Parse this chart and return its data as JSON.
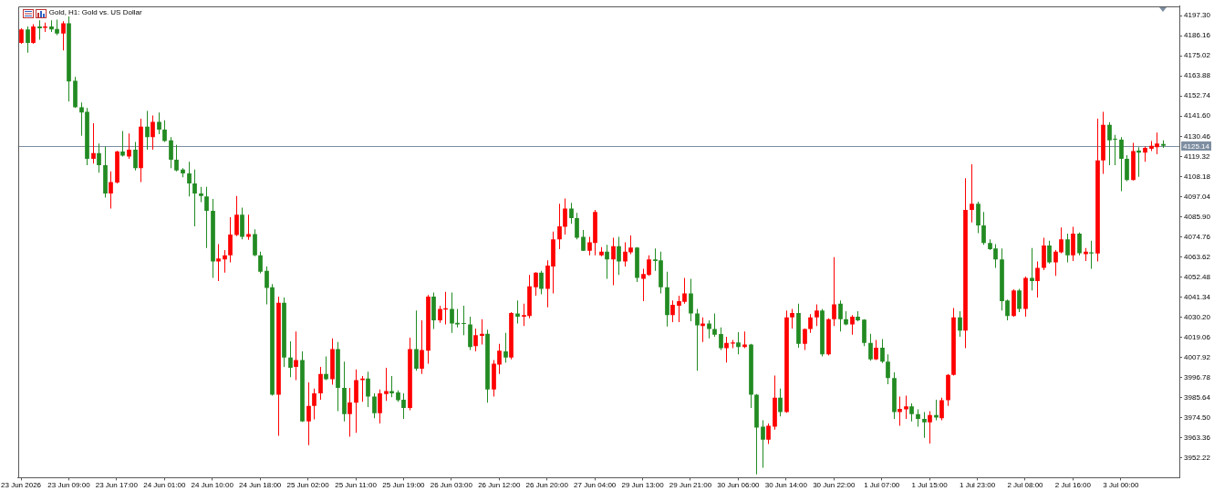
{
  "chart_data": {
    "type": "candlestick",
    "title": "Gold, H1: Gold vs. US Dollar",
    "categories": [
      "23 Jun 2026",
      null,
      null,
      null,
      null,
      null,
      null,
      null,
      "23 Jun 09:00",
      null,
      null,
      null,
      null,
      null,
      null,
      null,
      "23 Jun 17:00",
      null,
      null,
      null,
      null,
      null,
      null,
      null,
      "24 Jun 01:00",
      null,
      null,
      null,
      null,
      null,
      null,
      null,
      "24 Jun 10:00",
      null,
      null,
      null,
      null,
      null,
      null,
      null,
      "24 Jun 18:00",
      null,
      null,
      null,
      null,
      null,
      null,
      null,
      "25 Jun 02:00",
      null,
      null,
      null,
      null,
      null,
      null,
      null,
      "25 Jun 11:00",
      null,
      null,
      null,
      null,
      null,
      null,
      null,
      "25 Jun 19:00",
      null,
      null,
      null,
      null,
      null,
      null,
      null,
      "26 Jun 03:00",
      null,
      null,
      null,
      null,
      null,
      null,
      null,
      "26 Jun 12:00",
      null,
      null,
      null,
      null,
      null,
      null,
      null,
      "26 Jun 20:00",
      null,
      null,
      null,
      null,
      null,
      null,
      null,
      "27 Jun 04:00",
      null,
      null,
      null,
      null,
      null,
      null,
      null,
      "29 Jun 13:00",
      null,
      null,
      null,
      null,
      null,
      null,
      null,
      "29 Jun 21:00",
      null,
      null,
      null,
      null,
      null,
      null,
      null,
      "30 Jun 06:00",
      null,
      null,
      null,
      null,
      null,
      null,
      null,
      "30 Jun 14:00",
      null,
      null,
      null,
      null,
      null,
      null,
      null,
      "30 Jun 22:00",
      null,
      null,
      null,
      null,
      null,
      null,
      null,
      "1 Jul 07:00",
      null,
      null,
      null,
      null,
      null,
      null,
      null,
      "1 Jul 15:00",
      null,
      null,
      null,
      null,
      null,
      null,
      null,
      "1 Jul 23:00",
      null,
      null,
      null,
      null,
      null,
      null,
      null,
      "2 Jul 08:00",
      null,
      null,
      null,
      null,
      null,
      null,
      null,
      "2 Jul 16:00",
      null,
      null,
      null,
      null,
      null,
      null,
      null,
      "3 Jul 00:00",
      null,
      null,
      null,
      null,
      null,
      null,
      null
    ],
    "ohlc": [
      [
        4182.2,
        4190.3,
        4181.7,
        4189.6
      ],
      [
        4189.6,
        4191.3,
        4176.8,
        4182.2
      ],
      [
        4182.2,
        4192.5,
        4181.7,
        4191.3
      ],
      [
        4191.3,
        4194.7,
        4183.9,
        4190.3
      ],
      [
        4190.5,
        4193.4,
        4188.2,
        4191.3
      ],
      [
        4191.3,
        4194.7,
        4188.2,
        4189.6
      ],
      [
        4189.9,
        4195.1,
        4186.5,
        4187.4
      ],
      [
        4187.4,
        4194.2,
        4178.0,
        4193.0
      ],
      [
        4193.0,
        4196.8,
        4149.7,
        4160.8
      ],
      [
        4161.2,
        4163.4,
        4146.2,
        4146.6
      ],
      [
        4146.6,
        4149.2,
        4130.8,
        4143.7
      ],
      [
        4144.0,
        4146.2,
        4114.5,
        4118.0
      ],
      [
        4118.0,
        4137.7,
        4115.4,
        4121.1
      ],
      [
        4121.1,
        4126.5,
        4110.3,
        4114.5
      ],
      [
        4114.5,
        4124.8,
        4096.5,
        4098.8
      ],
      [
        4098.8,
        4111.1,
        4090.5,
        4105.1
      ],
      [
        4104.8,
        4122.4,
        4104.3,
        4122.1
      ],
      [
        4122.1,
        4133.4,
        4119.3,
        4119.7
      ],
      [
        4119.3,
        4132.0,
        4118.0,
        4123.1
      ],
      [
        4123.1,
        4127.4,
        4111.5,
        4112.8
      ],
      [
        4112.8,
        4140.2,
        4105.1,
        4135.8
      ],
      [
        4135.8,
        4144.5,
        4123.1,
        4130.0
      ],
      [
        4130.0,
        4142.0,
        4123.1,
        4138.5
      ],
      [
        4138.5,
        4143.7,
        4131.7,
        4134.2
      ],
      [
        4134.2,
        4139.4,
        4127.4,
        4127.9
      ],
      [
        4128.2,
        4130.0,
        4112.8,
        4117.5
      ],
      [
        4117.5,
        4125.7,
        4111.1,
        4111.6
      ],
      [
        4112.0,
        4112.8,
        4107.7,
        4109.9
      ],
      [
        4109.9,
        4116.3,
        4097.1,
        4104.3
      ],
      [
        4104.3,
        4112.0,
        4080.6,
        4098.8
      ],
      [
        4098.8,
        4102.5,
        4094.0,
        4097.4
      ],
      [
        4097.1,
        4102.5,
        4068.6,
        4089.2
      ],
      [
        4089.2,
        4095.7,
        4052.0,
        4061.1
      ],
      [
        4061.1,
        4070.8,
        4050.3,
        4062.8
      ],
      [
        4062.3,
        4067.4,
        4054.9,
        4064.5
      ],
      [
        4064.5,
        4085.7,
        4060.6,
        4076.0
      ],
      [
        4075.8,
        4097.4,
        4075.1,
        4087.1
      ],
      [
        4087.1,
        4090.9,
        4073.4,
        4074.8
      ],
      [
        4074.8,
        4087.1,
        4073.1,
        4076.3
      ],
      [
        4076.3,
        4078.9,
        4064.0,
        4064.5
      ],
      [
        4064.5,
        4066.6,
        4054.6,
        4055.4
      ],
      [
        4055.9,
        4058.3,
        4037.4,
        4046.5
      ],
      [
        4046.8,
        4048.6,
        3986.9,
        3987.4
      ],
      [
        3987.4,
        4041.7,
        3964.6,
        4038.3
      ],
      [
        4038.3,
        4041.2,
        4002.8,
        4007.9
      ],
      [
        4007.9,
        4016.9,
        3997.1,
        4002.3
      ],
      [
        4002.8,
        4022.3,
        3995.4,
        4006.6
      ],
      [
        4006.6,
        4011.4,
        3972.3,
        3972.6
      ],
      [
        3972.6,
        3994.2,
        3959.4,
        3981.2
      ],
      [
        3981.2,
        3990.8,
        3973.7,
        3988.1
      ],
      [
        3988.1,
        4002.8,
        3984.6,
        3998.9
      ],
      [
        3998.9,
        4008.6,
        3995.4,
        3995.9
      ],
      [
        3995.9,
        4018.6,
        3992.9,
        4012.6
      ],
      [
        4012.6,
        4016.5,
        3978.3,
        3991.1
      ],
      [
        3991.1,
        4005.7,
        3972.6,
        3976.6
      ],
      [
        3976.6,
        3991.1,
        3964.1,
        3983.1
      ],
      [
        3982.9,
        4001.4,
        3966.3,
        3995.4
      ],
      [
        3995.4,
        3997.7,
        3983.4,
        3996.3
      ],
      [
        3996.3,
        4000.1,
        3980.5,
        3986.3
      ],
      [
        3986.3,
        3988.1,
        3974.3,
        3977.1
      ],
      [
        3977.1,
        3990.3,
        3971.4,
        3988.1
      ],
      [
        3987.7,
        4002.3,
        3983.9,
        3989.4
      ],
      [
        3989.4,
        3997.7,
        3986.0,
        3988.1
      ],
      [
        3988.6,
        3989.8,
        3983.4,
        3984.3
      ],
      [
        3984.6,
        3988.1,
        3974.0,
        3980.0
      ],
      [
        3980.0,
        4018.9,
        3978.8,
        4012.6
      ],
      [
        4012.6,
        4034.0,
        4000.6,
        4001.8
      ],
      [
        4001.8,
        4028.5,
        3998.9,
        4012.1
      ],
      [
        4011.7,
        4042.6,
        4004.5,
        4041.7
      ],
      [
        4041.7,
        4043.9,
        4023.7,
        4028.5
      ],
      [
        4028.5,
        4036.6,
        4027.1,
        4034.8
      ],
      [
        4034.5,
        4044.3,
        4026.3,
        4035.2
      ],
      [
        4034.8,
        4043.9,
        4021.6,
        4026.8
      ],
      [
        4027.1,
        4034.8,
        4024.6,
        4026.3
      ],
      [
        4027.0,
        4036.6,
        4020.3,
        4026.5
      ],
      [
        4026.3,
        4030.6,
        4012.1,
        4013.8
      ],
      [
        4014.3,
        4024.0,
        4011.4,
        4020.3
      ],
      [
        4019.9,
        4029.2,
        4015.1,
        4021.1
      ],
      [
        4021.1,
        4023.4,
        3982.9,
        3990.3
      ],
      [
        3990.3,
        4006.6,
        3986.3,
        4004.5
      ],
      [
        4004.0,
        4015.5,
        3998.9,
        4011.7
      ],
      [
        4011.4,
        4021.6,
        4005.2,
        4007.9
      ],
      [
        4007.9,
        4033.1,
        4006.9,
        4032.6
      ],
      [
        4032.3,
        4039.5,
        4026.8,
        4030.6
      ],
      [
        4030.6,
        4037.8,
        4025.4,
        4031.4
      ],
      [
        4030.9,
        4053.7,
        4029.7,
        4047.4
      ],
      [
        4046.8,
        4055.2,
        4042.2,
        4054.9
      ],
      [
        4054.9,
        4055.9,
        4042.9,
        4046.0
      ],
      [
        4046.0,
        4061.8,
        4035.7,
        4058.8
      ],
      [
        4058.3,
        4077.7,
        4043.4,
        4073.4
      ],
      [
        4073.4,
        4093.1,
        4067.9,
        4080.6
      ],
      [
        4080.3,
        4096.0,
        4076.0,
        4090.5
      ],
      [
        4090.5,
        4093.6,
        4082.0,
        4085.1
      ],
      [
        4085.1,
        4088.0,
        4073.4,
        4074.3
      ],
      [
        4074.8,
        4078.6,
        4066.9,
        4067.1
      ],
      [
        4067.1,
        4074.8,
        4064.5,
        4071.7
      ],
      [
        4071.4,
        4089.7,
        4064.5,
        4088.5
      ],
      [
        4064.5,
        4069.1,
        4064.0,
        4066.6
      ],
      [
        4066.6,
        4070.3,
        4051.5,
        4062.3
      ],
      [
        4062.3,
        4074.3,
        4048.0,
        4069.6
      ],
      [
        4069.6,
        4074.8,
        4053.7,
        4061.1
      ],
      [
        4061.1,
        4071.7,
        4058.3,
        4066.6
      ],
      [
        4066.2,
        4075.5,
        4065.2,
        4068.8
      ],
      [
        4068.8,
        4069.1,
        4049.8,
        4052.0
      ],
      [
        4051.5,
        4057.1,
        4039.1,
        4054.2
      ],
      [
        4053.7,
        4064.5,
        4053.2,
        4062.3
      ],
      [
        4062.3,
        4068.3,
        4055.9,
        4061.4
      ],
      [
        4061.8,
        4066.6,
        4043.4,
        4046.8
      ],
      [
        4046.8,
        4055.4,
        4025.1,
        4031.4
      ],
      [
        4031.4,
        4039.5,
        4027.5,
        4037.1
      ],
      [
        4036.6,
        4042.2,
        4027.5,
        4039.1
      ],
      [
        4038.8,
        4052.0,
        4037.8,
        4043.4
      ],
      [
        4043.4,
        4051.5,
        4028.0,
        4032.3
      ],
      [
        4032.3,
        4034.8,
        4000.6,
        4025.8
      ],
      [
        4025.4,
        4030.2,
        4016.5,
        4026.8
      ],
      [
        4026.8,
        4028.5,
        4018.6,
        4023.7
      ],
      [
        4023.7,
        4032.3,
        4019.4,
        4020.6
      ],
      [
        4021.0,
        4024.6,
        4012.1,
        4013.1
      ],
      [
        4013.1,
        4019.4,
        4005.2,
        4016.0
      ],
      [
        4015.7,
        4017.7,
        4013.1,
        4016.3
      ],
      [
        4016.3,
        4022.0,
        4009.7,
        4013.8
      ],
      [
        4013.8,
        4022.3,
        4013.1,
        4015.1
      ],
      [
        4015.1,
        4015.5,
        3980.0,
        3987.4
      ],
      [
        3987.4,
        3987.7,
        3943.2,
        3969.2
      ],
      [
        3969.7,
        3973.2,
        3946.9,
        3962.4
      ],
      [
        3962.4,
        3971.4,
        3960.0,
        3970.2
      ],
      [
        3969.7,
        3998.0,
        3968.0,
        3985.7
      ],
      [
        3985.7,
        3990.8,
        3975.4,
        3977.8
      ],
      [
        3977.8,
        4034.0,
        3977.4,
        4030.2
      ],
      [
        4030.2,
        4034.8,
        4024.0,
        4032.6
      ],
      [
        4032.6,
        4037.8,
        4013.4,
        4015.5
      ],
      [
        4015.5,
        4024.0,
        4012.1,
        4023.7
      ],
      [
        4023.7,
        4031.9,
        4021.6,
        4030.2
      ],
      [
        4030.2,
        4037.4,
        4025.4,
        4034.0
      ],
      [
        4034.0,
        4034.8,
        4008.6,
        4009.7
      ],
      [
        4009.7,
        4029.7,
        4009.1,
        4029.2
      ],
      [
        4029.2,
        4063.5,
        4025.4,
        4037.4
      ],
      [
        4037.8,
        4039.5,
        4022.3,
        4029.2
      ],
      [
        4029.2,
        4033.6,
        4025.8,
        4026.3
      ],
      [
        4026.3,
        4031.4,
        4020.6,
        4030.6
      ],
      [
        4030.6,
        4033.6,
        4028.0,
        4028.5
      ],
      [
        4028.9,
        4029.2,
        4014.3,
        4016.0
      ],
      [
        4016.0,
        4021.1,
        4006.2,
        4006.9
      ],
      [
        4006.9,
        4017.7,
        4006.6,
        4013.4
      ],
      [
        4013.4,
        4018.2,
        4004.9,
        4005.7
      ],
      [
        4005.7,
        4009.7,
        3993.2,
        3996.6
      ],
      [
        3996.6,
        3999.7,
        3974.0,
        3977.8
      ],
      [
        3977.8,
        3986.3,
        3970.2,
        3979.5
      ],
      [
        3979.2,
        3986.9,
        3974.0,
        3980.9
      ],
      [
        3980.9,
        3982.6,
        3972.6,
        3976.6
      ],
      [
        3976.6,
        3979.2,
        3969.7,
        3974.0
      ],
      [
        3974.0,
        3977.8,
        3963.4,
        3972.0
      ],
      [
        3972.0,
        3978.3,
        3960.3,
        3976.1
      ],
      [
        3976.1,
        3984.6,
        3973.2,
        3974.7
      ],
      [
        3974.3,
        3985.7,
        3973.2,
        3984.3
      ],
      [
        3984.3,
        3998.9,
        3981.2,
        3998.3
      ],
      [
        3998.3,
        4035.4,
        3998.0,
        4030.2
      ],
      [
        4030.2,
        4033.6,
        4019.4,
        4022.8
      ],
      [
        4022.8,
        4107.3,
        4013.1,
        4089.7
      ],
      [
        4089.7,
        4114.9,
        4082.8,
        4093.1
      ],
      [
        4093.1,
        4094.3,
        4076.8,
        4081.1
      ],
      [
        4081.1,
        4088.5,
        4070.3,
        4071.4
      ],
      [
        4071.4,
        4073.4,
        4067.4,
        4067.9
      ],
      [
        4068.3,
        4070.8,
        4057.6,
        4062.3
      ],
      [
        4062.3,
        4068.3,
        4034.0,
        4039.1
      ],
      [
        4039.5,
        4040.0,
        4028.5,
        4030.9
      ],
      [
        4030.9,
        4045.7,
        4030.6,
        4045.1
      ],
      [
        4045.1,
        4046.0,
        4033.1,
        4034.8
      ],
      [
        4034.8,
        4052.8,
        4030.6,
        4052.0
      ],
      [
        4052.0,
        4068.6,
        4045.1,
        4050.3
      ],
      [
        4050.3,
        4061.1,
        4041.2,
        4057.6
      ],
      [
        4057.6,
        4074.3,
        4056.3,
        4070.0
      ],
      [
        4070.0,
        4072.6,
        4060.0,
        4060.6
      ],
      [
        4060.6,
        4067.4,
        4053.2,
        4066.6
      ],
      [
        4066.2,
        4079.9,
        4065.7,
        4073.4
      ],
      [
        4073.4,
        4076.5,
        4060.6,
        4064.5
      ],
      [
        4064.5,
        4080.3,
        4061.4,
        4076.5
      ],
      [
        4076.5,
        4077.2,
        4064.5,
        4065.7
      ],
      [
        4065.2,
        4068.6,
        4061.4,
        4066.6
      ],
      [
        4066.2,
        4072.6,
        4057.1,
        4065.5
      ],
      [
        4065.5,
        4140.2,
        4061.1,
        4117.1
      ],
      [
        4117.1,
        4144.0,
        4109.7,
        4136.8
      ],
      [
        4136.8,
        4138.2,
        4114.5,
        4128.2
      ],
      [
        4129.1,
        4131.3,
        4114.5,
        4128.6
      ],
      [
        4128.6,
        4130.0,
        4100.0,
        4118.0
      ],
      [
        4118.0,
        4120.0,
        4105.6,
        4106.3
      ],
      [
        4106.3,
        4126.9,
        4106.0,
        4122.3
      ],
      [
        4122.6,
        4124.5,
        4108.0,
        4121.4
      ],
      [
        4121.4,
        4124.8,
        4116.3,
        4124.0
      ],
      [
        4123.6,
        4127.9,
        4122.3,
        4125.2
      ],
      [
        4124.5,
        4132.5,
        4120.5,
        4126.5
      ],
      [
        4126.2,
        4128.2,
        4124.0,
        4125.14
      ]
    ],
    "colors": [
      "#ff0000",
      "#228b22",
      "#ff0000",
      "#228b22",
      "#ff0000",
      "#228b22",
      "#228b22",
      "#ff0000",
      "#228b22",
      "#228b22",
      "#228b22",
      "#228b22",
      "#ff0000",
      "#228b22",
      "#228b22",
      "#ff0000",
      "#ff0000",
      "#228b22",
      "#ff0000",
      "#228b22",
      "#ff0000",
      "#228b22",
      "#ff0000",
      "#228b22",
      "#228b22",
      "#228b22",
      "#228b22",
      "#228b22",
      "#228b22",
      "#228b22",
      "#228b22",
      "#228b22",
      "#228b22",
      "#ff0000",
      "#ff0000",
      "#ff0000",
      "#ff0000",
      "#228b22",
      "#ff0000",
      "#228b22",
      "#228b22",
      "#228b22",
      "#228b22",
      "#ff0000",
      "#228b22",
      "#228b22",
      "#ff0000",
      "#228b22",
      "#ff0000",
      "#ff0000",
      "#ff0000",
      "#228b22",
      "#ff0000",
      "#228b22",
      "#228b22",
      "#ff0000",
      "#ff0000",
      "#ff0000",
      "#228b22",
      "#228b22",
      "#ff0000",
      "#ff0000",
      "#228b22",
      "#228b22",
      "#228b22",
      "#ff0000",
      "#228b22",
      "#ff0000",
      "#ff0000",
      "#228b22",
      "#ff0000",
      "#ff0000",
      "#228b22",
      "#228b22",
      "#228b22",
      "#228b22",
      "#ff0000",
      "#ff0000",
      "#228b22",
      "#ff0000",
      "#ff0000",
      "#228b22",
      "#ff0000",
      "#228b22",
      "#ff0000",
      "#ff0000",
      "#ff0000",
      "#228b22",
      "#ff0000",
      "#ff0000",
      "#ff0000",
      "#ff0000",
      "#228b22",
      "#228b22",
      "#228b22",
      "#ff0000",
      "#ff0000",
      "#ff0000",
      "#228b22",
      "#ff0000",
      "#228b22",
      "#ff0000",
      "#ff0000",
      "#228b22",
      "#ff0000",
      "#ff0000",
      "#228b22",
      "#228b22",
      "#228b22",
      "#ff0000",
      "#ff0000",
      "#ff0000",
      "#228b22",
      "#228b22",
      "#ff0000",
      "#228b22",
      "#228b22",
      "#228b22",
      "#ff0000",
      "#ff0000",
      "#228b22",
      "#ff0000",
      "#228b22",
      "#228b22",
      "#228b22",
      "#ff0000",
      "#ff0000",
      "#228b22",
      "#ff0000",
      "#ff0000",
      "#228b22",
      "#ff0000",
      "#ff0000",
      "#ff0000",
      "#228b22",
      "#ff0000",
      "#ff0000",
      "#228b22",
      "#228b22",
      "#ff0000",
      "#228b22",
      "#228b22",
      "#228b22",
      "#ff0000",
      "#228b22",
      "#228b22",
      "#228b22",
      "#ff0000",
      "#ff0000",
      "#228b22",
      "#228b22",
      "#228b22",
      "#ff0000",
      "#228b22",
      "#ff0000",
      "#ff0000",
      "#ff0000",
      "#228b22",
      "#ff0000",
      "#ff0000",
      "#228b22",
      "#228b22",
      "#228b22",
      "#228b22",
      "#228b22",
      "#228b22",
      "#ff0000",
      "#228b22",
      "#ff0000",
      "#228b22",
      "#ff0000",
      "#ff0000",
      "#228b22",
      "#ff0000",
      "#ff0000",
      "#228b22",
      "#ff0000",
      "#228b22",
      "#ff0000",
      "#228b22",
      "#ff0000",
      "#ff0000",
      "#228b22",
      "#228b22",
      "#228b22",
      "#228b22",
      "#ff0000",
      "#228b22",
      "#ff0000",
      "#ff0000",
      "#ff0000",
      "#228b22"
    ],
    "ylim": [
      3941.4,
      4202.5
    ],
    "yticks": [
      {
        "value": 3952.22,
        "label": "3952.22"
      },
      {
        "value": 3963.36,
        "label": "3963.36"
      },
      {
        "value": 3974.5,
        "label": "3974.50"
      },
      {
        "value": 3985.64,
        "label": "3985.64"
      },
      {
        "value": 3996.78,
        "label": "3996.78"
      },
      {
        "value": 4007.92,
        "label": "4007.92"
      },
      {
        "value": 4019.06,
        "label": "4019.06"
      },
      {
        "value": 4030.2,
        "label": "4030.20"
      },
      {
        "value": 4041.34,
        "label": "4041.34"
      },
      {
        "value": 4052.48,
        "label": "4052.48"
      },
      {
        "value": 4063.62,
        "label": "4063.62"
      },
      {
        "value": 4074.76,
        "label": "4074.76"
      },
      {
        "value": 4085.9,
        "label": "4085.90"
      },
      {
        "value": 4097.04,
        "label": "4097.04"
      },
      {
        "value": 4108.18,
        "label": "4108.18"
      },
      {
        "value": 4119.32,
        "label": "4119.32"
      },
      {
        "value": 4130.46,
        "label": "4130.46"
      },
      {
        "value": 4141.6,
        "label": "4141.60"
      },
      {
        "value": 4152.74,
        "label": "4152.74"
      },
      {
        "value": 4163.88,
        "label": "4163.88"
      },
      {
        "value": 4175.02,
        "label": "4175.02"
      },
      {
        "value": 4186.16,
        "label": "4186.16"
      },
      {
        "value": 4197.3,
        "label": "4197.30"
      }
    ],
    "ref_lines": [
      {
        "axis": "y",
        "value": 4125.14,
        "label": "4125.14",
        "color": "#7d8ea1"
      }
    ]
  }
}
